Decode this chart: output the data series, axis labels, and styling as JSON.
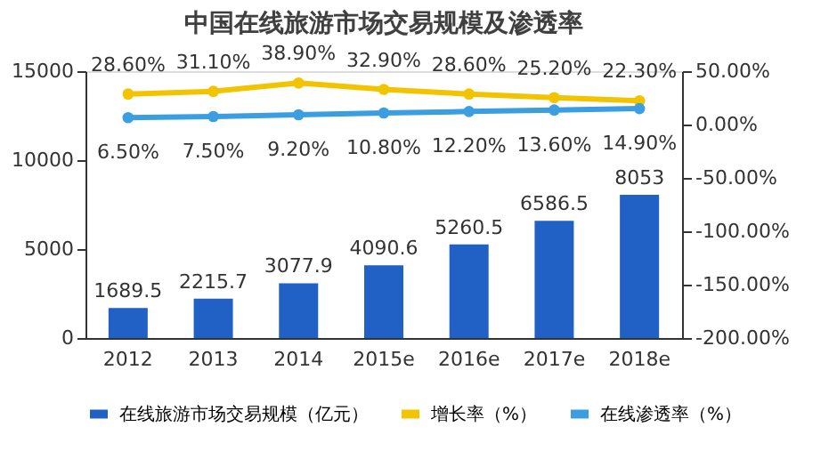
{
  "chart_data": {
    "type": "bar",
    "title": "中国在线旅游市场交易规模及渗透率",
    "categories": [
      "2012",
      "2013",
      "2014",
      "2015e",
      "2016e",
      "2017e",
      "2018e"
    ],
    "series": [
      {
        "name": "在线旅游市场交易规模（亿元）",
        "color": "#2160c4",
        "values": [
          1689.5,
          2215.7,
          3077.9,
          4090.6,
          5260.5,
          6586.5,
          8053
        ],
        "value_labels": [
          "1689.5",
          "2215.7",
          "3077.9",
          "4090.6",
          "5260.5",
          "6586.5",
          "8053"
        ]
      },
      {
        "name": "增长率（%）",
        "type": "line",
        "axis": "y2",
        "color": "#f2c400",
        "values": [
          28.6,
          31.1,
          38.9,
          32.9,
          28.6,
          25.2,
          22.3
        ],
        "value_labels": [
          "28.60%",
          "31.10%",
          "38.90%",
          "32.90%",
          "28.60%",
          "25.20%",
          "22.30%"
        ]
      },
      {
        "name": "在线渗透率（%）",
        "type": "line",
        "axis": "y2",
        "color": "#3a9ee0",
        "values": [
          6.5,
          7.5,
          9.2,
          10.8,
          12.2,
          13.6,
          14.9
        ],
        "value_labels": [
          "6.50%",
          "7.50%",
          "9.20%",
          "10.80%",
          "12.20%",
          "13.60%",
          "14.90%"
        ]
      }
    ],
    "ylim": [
      0,
      15000
    ],
    "yticks": [
      0,
      5000,
      10000,
      15000
    ],
    "y2lim": [
      -200,
      50
    ],
    "y2ticks": [
      {
        "value": -200,
        "label": "-200.00%"
      },
      {
        "value": -150,
        "label": "-150.00%"
      },
      {
        "value": -100,
        "label": "-100.00%"
      },
      {
        "value": -50,
        "label": "-50.00%"
      },
      {
        "value": 0,
        "label": "0.00%"
      },
      {
        "value": 50,
        "label": "50.00%"
      }
    ],
    "grid": false,
    "legend": "bottom",
    "marker": "circle",
    "line_style": "solid"
  }
}
